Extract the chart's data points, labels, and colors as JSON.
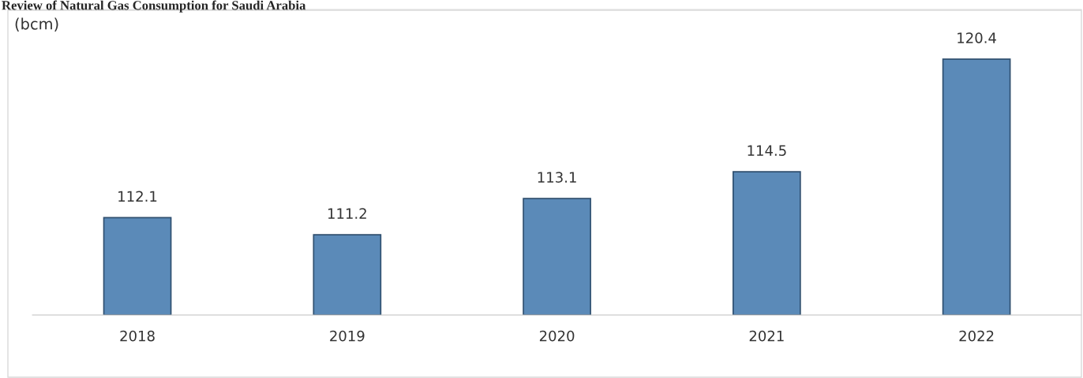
{
  "chart_data": {
    "type": "bar",
    "title": "Review of Natural Gas Consumption for Saudi Arabia",
    "ylabel": "(bcm)",
    "categories": [
      "2018",
      "2019",
      "2020",
      "2021",
      "2022"
    ],
    "values": [
      112.1,
      111.2,
      113.1,
      114.5,
      120.4
    ],
    "color": "#5b8ab8",
    "ylim": [
      107,
      123
    ],
    "data_labels": true,
    "grid": false,
    "legend": false
  }
}
